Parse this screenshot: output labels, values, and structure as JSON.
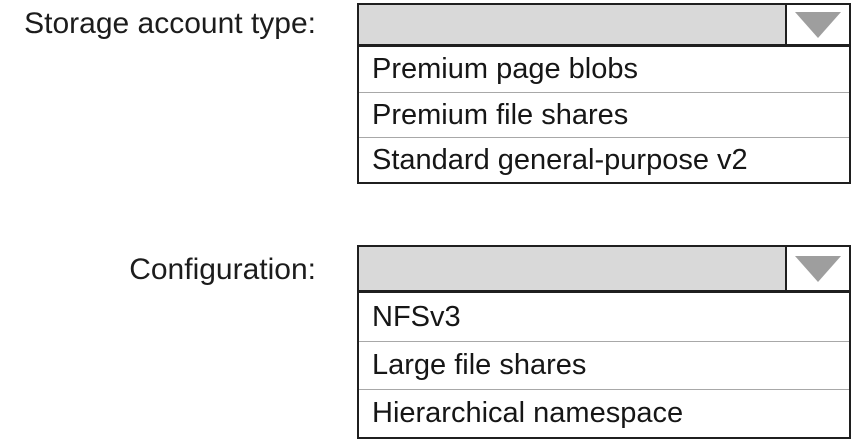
{
  "colors": {
    "background": "#ffffff",
    "field_fill": "#d9d9d9",
    "outer_border": "#1f1f1f",
    "row_divider": "#a8a8a8",
    "arrow_glyph": "#9e9e9e",
    "text": "#161616"
  },
  "dropdowns": [
    {
      "label": "Storage account type:",
      "selected_value": "",
      "options": [
        "Premium page blobs",
        "Premium file shares",
        "Standard general-purpose v2"
      ]
    },
    {
      "label": "Configuration:",
      "selected_value": "",
      "options": [
        "NFSv3",
        "Large file shares",
        "Hierarchical namespace"
      ]
    }
  ]
}
